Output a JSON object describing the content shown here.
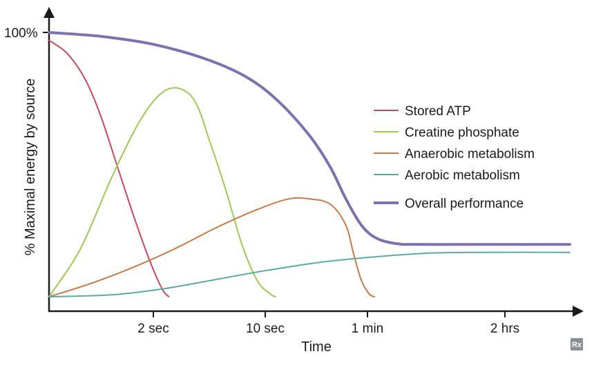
{
  "chart_data": {
    "type": "line",
    "title": "",
    "xlabel": "Time",
    "ylabel": "% Maximal energy by source",
    "x_ticks": [
      "2 sec",
      "10 sec",
      "1 min",
      "2 hrs"
    ],
    "y_ticks": [
      "100%"
    ],
    "xlim": [
      0,
      10
    ],
    "ylim": [
      0,
      100
    ],
    "grid": false,
    "legend_position": "right",
    "series": [
      {
        "name": "Stored ATP",
        "color": "#c8485a",
        "points": [
          [
            0,
            97
          ],
          [
            0.35,
            92
          ],
          [
            0.7,
            82
          ],
          [
            1.0,
            68
          ],
          [
            1.3,
            50
          ],
          [
            1.6,
            32
          ],
          [
            1.85,
            18
          ],
          [
            2.05,
            8
          ],
          [
            2.2,
            2
          ],
          [
            2.3,
            0
          ]
        ]
      },
      {
        "name": "Creatine phosphate",
        "color": "#9cc955",
        "points": [
          [
            0,
            0
          ],
          [
            0.6,
            18
          ],
          [
            1.2,
            45
          ],
          [
            1.7,
            65
          ],
          [
            2.1,
            76
          ],
          [
            2.45,
            79
          ],
          [
            2.8,
            74
          ],
          [
            3.1,
            58
          ],
          [
            3.4,
            40
          ],
          [
            3.7,
            20
          ],
          [
            4.0,
            6
          ],
          [
            4.25,
            1
          ],
          [
            4.35,
            0
          ]
        ]
      },
      {
        "name": "Anaerobic metabolism",
        "color": "#c87947",
        "points": [
          [
            0,
            0
          ],
          [
            0.8,
            5
          ],
          [
            1.6,
            11
          ],
          [
            2.4,
            18
          ],
          [
            3.2,
            26
          ],
          [
            4.0,
            33
          ],
          [
            4.6,
            37
          ],
          [
            5.0,
            37
          ],
          [
            5.4,
            35
          ],
          [
            5.7,
            27
          ],
          [
            5.85,
            16
          ],
          [
            6.0,
            6
          ],
          [
            6.15,
            1
          ],
          [
            6.25,
            0
          ]
        ]
      },
      {
        "name": "Aerobic metabolism",
        "color": "#5ba9a7",
        "points": [
          [
            0,
            0
          ],
          [
            1.2,
            0.7
          ],
          [
            2.2,
            3
          ],
          [
            3.2,
            6.5
          ],
          [
            4.2,
            10
          ],
          [
            5.2,
            13
          ],
          [
            6.2,
            15
          ],
          [
            7.2,
            16.4
          ],
          [
            8.2,
            16.8
          ],
          [
            10,
            16.8
          ]
        ]
      },
      {
        "name": "Overall performance",
        "color": "#7f71ae",
        "points": [
          [
            0,
            100
          ],
          [
            1.0,
            98.5
          ],
          [
            2.0,
            95.5
          ],
          [
            3.0,
            90
          ],
          [
            3.8,
            83
          ],
          [
            4.4,
            74
          ],
          [
            5.0,
            61
          ],
          [
            5.4,
            49
          ],
          [
            5.7,
            37
          ],
          [
            6.0,
            27
          ],
          [
            6.3,
            22
          ],
          [
            6.7,
            20
          ],
          [
            7.2,
            19.8
          ],
          [
            10,
            19.8
          ]
        ]
      }
    ]
  },
  "badge": {
    "text": "Rx"
  }
}
